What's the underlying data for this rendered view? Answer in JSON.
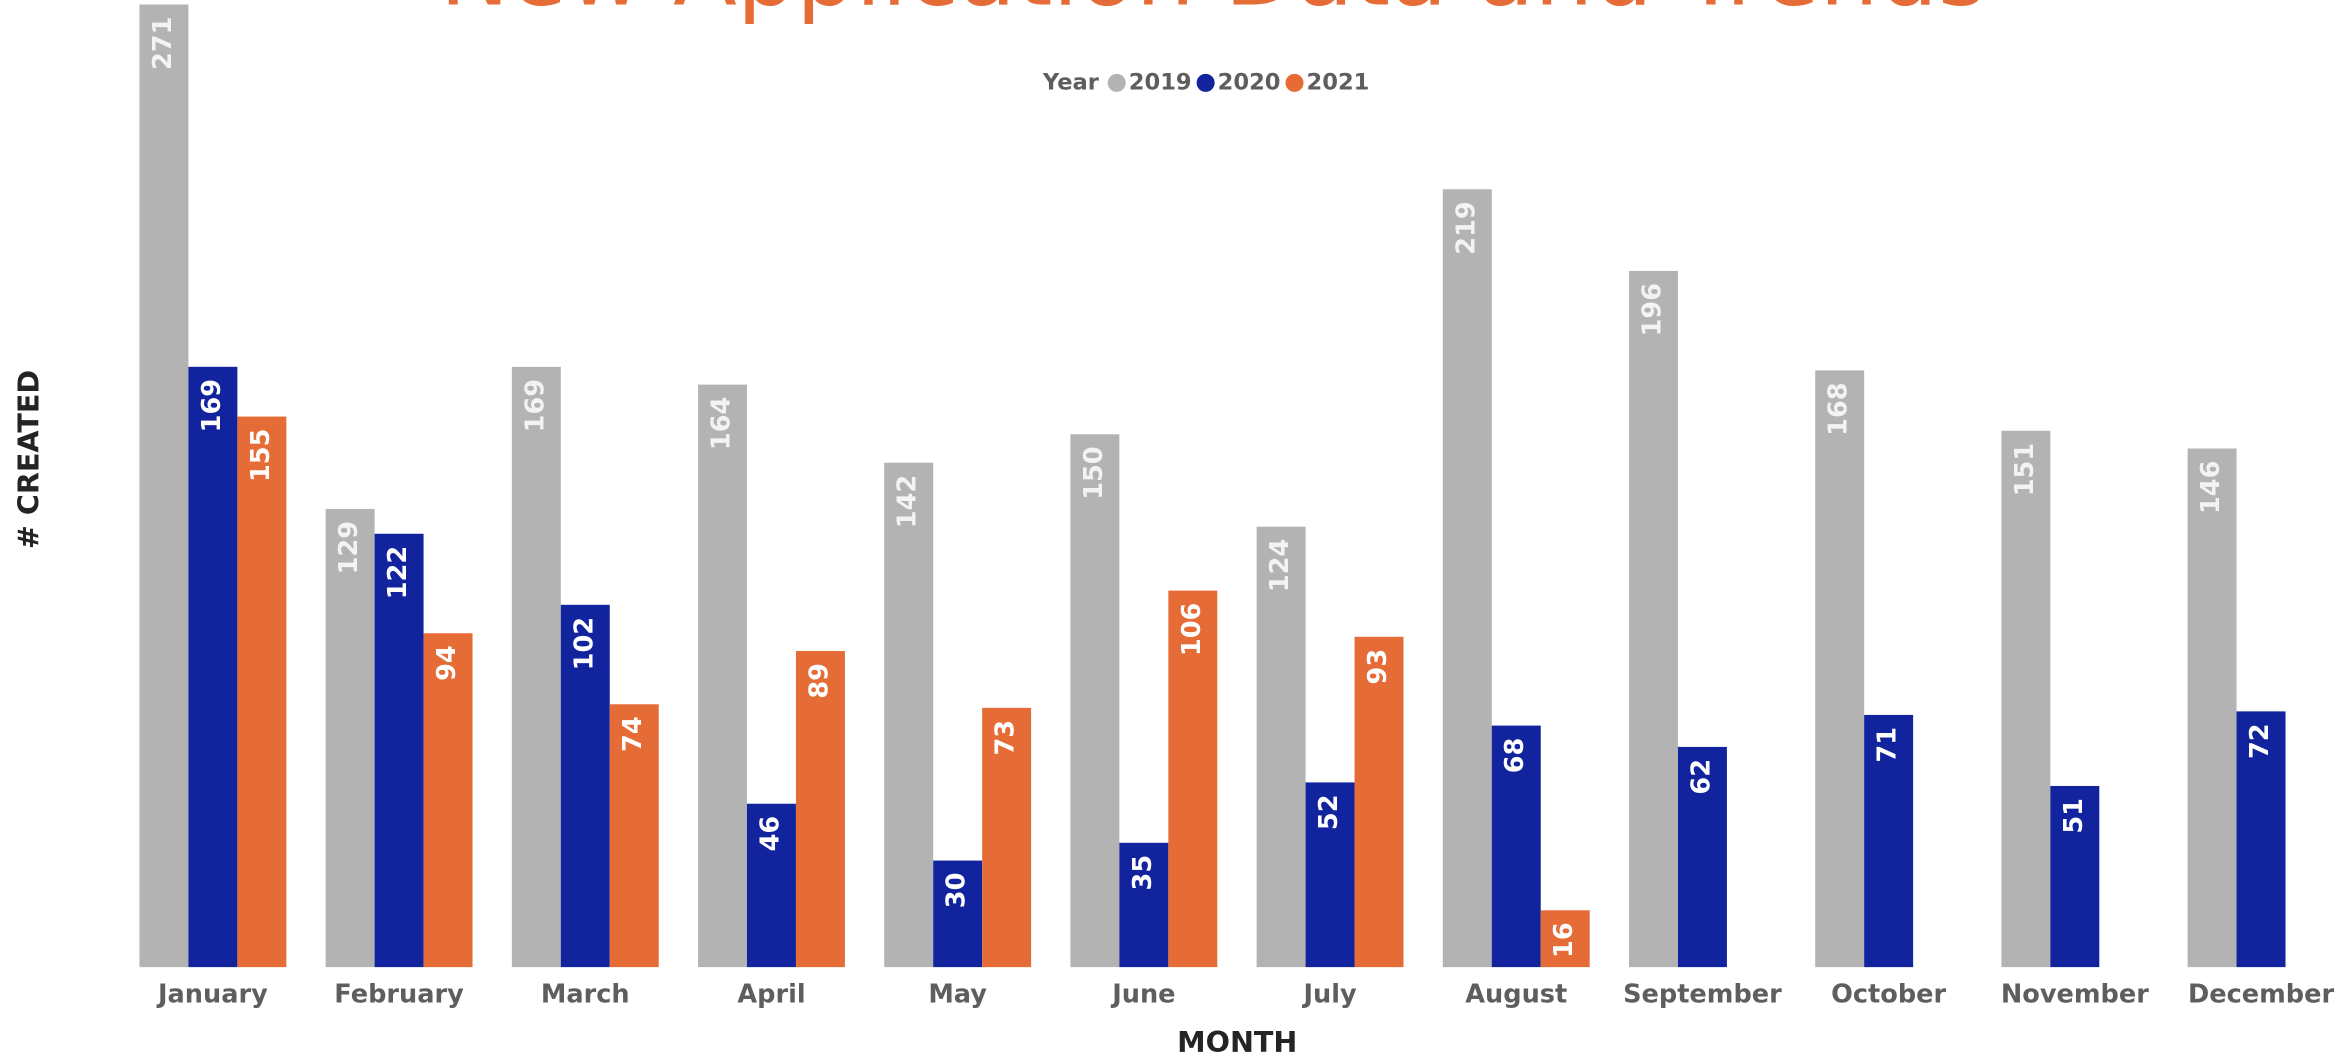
{
  "chart_data": {
    "type": "bar",
    "title": "New Application Data and Trends",
    "x_label": "MONTH",
    "y_label": "# CREATED",
    "legend_title": "Year",
    "legend": "top",
    "categories": [
      "January",
      "February",
      "March",
      "April",
      "May",
      "June",
      "July",
      "August",
      "September",
      "October",
      "November",
      "December"
    ],
    "series": [
      {
        "name": "2019",
        "color": "#b3b3b3",
        "values": [
          271,
          129,
          169,
          164,
          142,
          150,
          124,
          219,
          196,
          168,
          151,
          146
        ]
      },
      {
        "name": "2020",
        "color": "#12239e",
        "values": [
          169,
          122,
          102,
          46,
          30,
          35,
          52,
          68,
          62,
          71,
          51,
          72
        ]
      },
      {
        "name": "2021",
        "color": "#e66c37",
        "values": [
          155,
          94,
          74,
          89,
          73,
          106,
          93,
          16,
          null,
          null,
          null,
          null
        ]
      }
    ],
    "ylim": [
      0,
      271
    ]
  }
}
